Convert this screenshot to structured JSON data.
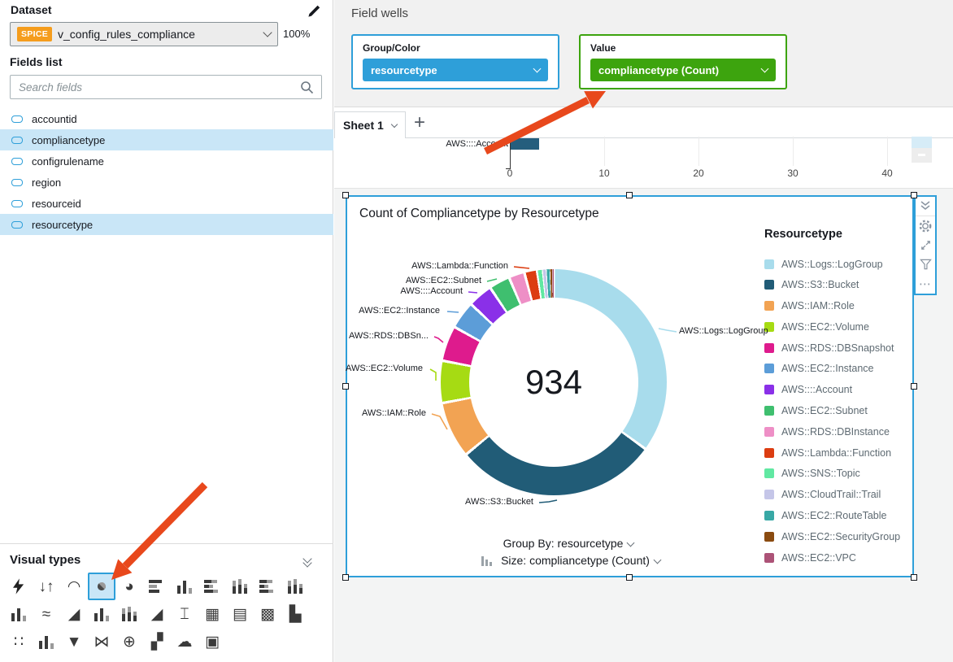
{
  "app": {
    "accent_blue": "#2E9FD9",
    "accent_green": "#3DA40E",
    "spice_orange": "#F59D1D",
    "arrow_color": "#E8481C",
    "highlight_row": "#C9E6F7",
    "canvas_bg": "#F3F4F4"
  },
  "dataset_panel": {
    "title": "Dataset",
    "spice_badge": "SPICE",
    "dataset_name": "v_config_rules_compliance",
    "progress": "100%",
    "fields_list_title": "Fields list",
    "search_placeholder": "Search fields",
    "fields": [
      {
        "name": "accountid",
        "selected": false
      },
      {
        "name": "compliancetype",
        "selected": true
      },
      {
        "name": "configrulename",
        "selected": false
      },
      {
        "name": "region",
        "selected": false
      },
      {
        "name": "resourceid",
        "selected": false
      },
      {
        "name": "resourcetype",
        "selected": true
      }
    ]
  },
  "field_wells": {
    "title": "Field wells",
    "group_well": {
      "label": "Group/Color",
      "value": "resourcetype"
    },
    "value_well": {
      "label": "Value",
      "value": "compliancetype (Count)"
    }
  },
  "sheet": {
    "tab_label": "Sheet 1",
    "add_tab": "+"
  },
  "visual": {
    "title": "Count of Compliancetype by Resourcetype",
    "center_total": "934",
    "group_by": "Group By: resourcetype",
    "size": "Size: compliancetype (Count)",
    "legend_title": "Resourcetype"
  },
  "chart_data": [
    {
      "type": "pie",
      "subtype": "donut",
      "title": "Count of Compliancetype by Resourcetype",
      "center_label": "934",
      "total": 934,
      "legend_title": "Resourcetype",
      "legend_position": "right",
      "categories": [
        "AWS::Logs::LogGroup",
        "AWS::S3::Bucket",
        "AWS::IAM::Role",
        "AWS::EC2::Volume",
        "AWS::RDS::DBSnapshot",
        "AWS::EC2::Instance",
        "AWS::::Account",
        "AWS::EC2::Subnet",
        "AWS::RDS::DBInstance",
        "AWS::Lambda::Function",
        "AWS::SNS::Topic",
        "AWS::CloudTrail::Trail",
        "AWS::EC2::RouteTable",
        "AWS::EC2::SecurityGroup",
        "AWS::EC2::VPC"
      ],
      "values": [
        327,
        271,
        75,
        56,
        47,
        37,
        33,
        28,
        21,
        17,
        7,
        5,
        5,
        3,
        2
      ],
      "colors": [
        "#A8DCEC",
        "#215C77",
        "#F2A353",
        "#A6DB13",
        "#DE1B8D",
        "#5C9DD8",
        "#8A30E8",
        "#3FBF6F",
        "#EE8FC6",
        "#DC3D11",
        "#61E8A2",
        "#C5C6E8",
        "#38A8A5",
        "#8A4B10",
        "#AC5377"
      ],
      "callouts": [
        {
          "text": "AWS::Lambda::Function",
          "category_index": 9
        },
        {
          "text": "AWS::EC2::Subnet",
          "category_index": 7
        },
        {
          "text": "AWS::::Account",
          "category_index": 6
        },
        {
          "text": "AWS::EC2::Instance",
          "category_index": 5
        },
        {
          "text": "AWS::RDS::DBSn...",
          "category_index": 4
        },
        {
          "text": "AWS::EC2::Volume",
          "category_index": 3
        },
        {
          "text": "AWS::IAM::Role",
          "category_index": 2
        },
        {
          "text": "AWS::S3::Bucket",
          "category_index": 1
        },
        {
          "text": "AWS::Logs::LogGroup",
          "category_index": 0
        }
      ]
    },
    {
      "type": "bar",
      "orientation": "horizontal",
      "categories": [
        "AWS::::Account"
      ],
      "values": [
        3
      ],
      "x_ticks": [
        0,
        10,
        20,
        30,
        40
      ],
      "bar_color": "#255E7D",
      "partially_visible": true
    }
  ],
  "visual_types": {
    "title": "Visual types",
    "items": [
      {
        "name": "auto-graph",
        "icon": "flash",
        "selected": false
      },
      {
        "name": "kpi",
        "glyph": "↓↑",
        "selected": false
      },
      {
        "name": "gauge-chart",
        "glyph": "◠",
        "selected": false
      },
      {
        "name": "donut-chart",
        "icon": "donut",
        "selected": true
      },
      {
        "name": "pie-chart",
        "glyph": "◕",
        "selected": false
      },
      {
        "name": "horizontal-bar-chart",
        "icon": "bars-h",
        "selected": false
      },
      {
        "name": "vertical-bar-chart",
        "icon": "bars-v",
        "selected": false
      },
      {
        "name": "horizontal-stacked-bar-chart",
        "icon": "bars-h2",
        "selected": false
      },
      {
        "name": "vertical-stacked-bar-chart",
        "icon": "bars-v2",
        "selected": false
      },
      {
        "name": "horizontal-stacked-100-bar-chart",
        "icon": "bars-h2",
        "selected": false
      },
      {
        "name": "vertical-stacked-100-bar-chart",
        "icon": "bars-v2",
        "selected": false
      },
      {
        "name": "waterfall-chart",
        "icon": "bars-v",
        "selected": false
      },
      {
        "name": "line-chart",
        "glyph": "≈",
        "selected": false
      },
      {
        "name": "area-line-chart",
        "glyph": "◢",
        "selected": false
      },
      {
        "name": "combo-clustered-bar-line-chart",
        "icon": "bars-v",
        "selected": false
      },
      {
        "name": "combo-stacked-bar-line-chart",
        "icon": "bars-v2",
        "selected": false
      },
      {
        "name": "stacked-area-chart",
        "glyph": "◢",
        "selected": false
      },
      {
        "name": "box-plot",
        "glyph": "⌶",
        "selected": false
      },
      {
        "name": "pivot-table",
        "glyph": "▦",
        "selected": false
      },
      {
        "name": "table",
        "glyph": "▤",
        "selected": false
      },
      {
        "name": "heat-map",
        "glyph": "▩",
        "selected": false
      },
      {
        "name": "tree-map",
        "glyph": "▙",
        "selected": false
      },
      {
        "name": "scatter-plot",
        "glyph": "∷",
        "selected": false
      },
      {
        "name": "histogram",
        "icon": "bars-v",
        "selected": false
      },
      {
        "name": "funnel-chart",
        "glyph": "▼",
        "selected": false
      },
      {
        "name": "sankey-diagram",
        "glyph": "⋈",
        "selected": false
      },
      {
        "name": "points-on-map",
        "glyph": "⊕",
        "selected": false
      },
      {
        "name": "filled-map",
        "glyph": "▞",
        "selected": false
      },
      {
        "name": "word-cloud",
        "glyph": "☁",
        "selected": false
      },
      {
        "name": "insights",
        "glyph": "▣",
        "selected": false
      }
    ]
  }
}
